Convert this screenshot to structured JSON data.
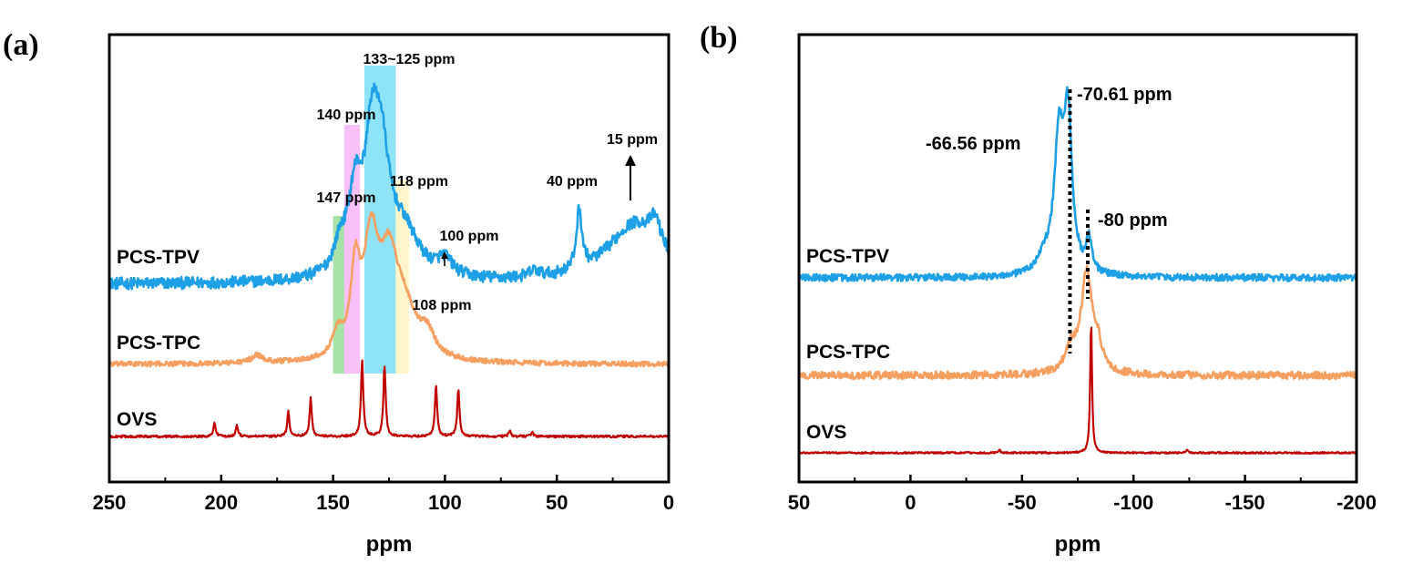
{
  "chart_data": [
    {
      "panel": "(a)",
      "type": "line",
      "xlabel": "ppm",
      "xlim": [
        250,
        0
      ],
      "x_reversed": true,
      "xticks": [
        250,
        200,
        150,
        100,
        50,
        0
      ],
      "series": [
        {
          "name": "PCS-TPV",
          "color": "#1ea0e6",
          "baseline": 0.0,
          "peaks": [
            [
              147,
              0.35,
              3
            ],
            [
              140,
              1.2,
              4
            ],
            [
              129,
              2.0,
              5
            ],
            [
              133,
              1.2,
              3
            ],
            [
              118,
              0.6,
              8
            ],
            [
              100,
              0.25,
              4
            ],
            [
              60,
              0.1,
              3
            ],
            [
              40,
              0.9,
              1.5
            ],
            [
              15,
              0.9,
              15
            ],
            [
              6,
              0.4,
              3
            ]
          ],
          "noise": 0.09
        },
        {
          "name": "PCS-TPC",
          "color": "#f5a060",
          "baseline": 0.0,
          "peaks": [
            [
              184,
              0.15,
              3
            ],
            [
              148,
              0.45,
              2.5
            ],
            [
              140,
              1.6,
              2.5
            ],
            [
              133,
              2.2,
              4
            ],
            [
              125,
              1.8,
              5
            ],
            [
              118,
              0.8,
              6
            ],
            [
              108,
              0.45,
              4
            ]
          ],
          "noise": 0.05
        },
        {
          "name": "OVS",
          "color": "#c00000",
          "baseline": 0.0,
          "peaks": [
            [
              203,
              0.25,
              0.6
            ],
            [
              193,
              0.2,
              0.6
            ],
            [
              170,
              0.45,
              0.6
            ],
            [
              160,
              0.7,
              0.6
            ],
            [
              137,
              1.4,
              0.6
            ],
            [
              127,
              1.3,
              0.6
            ],
            [
              104,
              0.95,
              0.6
            ],
            [
              94,
              0.85,
              0.6
            ],
            [
              71,
              0.1,
              0.6
            ],
            [
              61,
              0.08,
              0.6
            ]
          ],
          "noise": 0.02
        }
      ],
      "highlights": [
        {
          "from": 150,
          "to": 145,
          "color": "#5ecb5e"
        },
        {
          "from": 145,
          "to": 138,
          "color": "#f08cf0"
        },
        {
          "from": 136,
          "to": 122,
          "color": "#33ccee"
        },
        {
          "from": 122,
          "to": 116,
          "color": "#fff0a0"
        }
      ],
      "annotations": [
        {
          "text": "133~125 ppm",
          "x": 130,
          "y_series": "PCS-TPV",
          "dy": 2.55
        },
        {
          "text": "140 ppm",
          "x": 140,
          "y_series": "PCS-TPV",
          "dy": 1.9
        },
        {
          "text": "147 ppm",
          "x": 147,
          "y_series": "PCS-TPV",
          "dy": 0.85
        },
        {
          "text": "118 ppm",
          "x": 116,
          "y_series": "PCS-TPV",
          "dy": 1.1
        },
        {
          "text": "100 ppm",
          "x": 94,
          "y_series": "PCS-TPV",
          "dy": 0.45
        },
        {
          "text": "40 ppm",
          "x": 46,
          "y_series": "PCS-TPV",
          "dy": 1.1
        },
        {
          "text": "15 ppm",
          "x": 12,
          "y_series": "PCS-TPV",
          "dy": 1.65
        },
        {
          "text": "108 ppm",
          "x": 100,
          "y_series": "PCS-TPC",
          "dy": 0.7
        }
      ]
    },
    {
      "panel": "(b)",
      "type": "line",
      "xlabel": "ppm",
      "xlim": [
        50,
        -200
      ],
      "x_reversed": true,
      "xticks": [
        50,
        0,
        -50,
        -100,
        -150,
        -200
      ],
      "series": [
        {
          "name": "PCS-TPV",
          "color": "#1ea0e6",
          "baseline": 0.0,
          "peaks": [
            [
              -66.56,
              1.8,
              2.5
            ],
            [
              -70.61,
              2.1,
              2.2
            ],
            [
              -80,
              0.45,
              1.5
            ],
            [
              -60,
              0.2,
              4
            ]
          ],
          "noise": 0.05
        },
        {
          "name": "PCS-TPC",
          "color": "#f5a060",
          "baseline": 0.0,
          "peaks": [
            [
              -79,
              1.35,
              3
            ],
            [
              -72,
              0.3,
              3
            ],
            [
              -84,
              0.3,
              2
            ]
          ],
          "noise": 0.05
        },
        {
          "name": "OVS",
          "color": "#c00000",
          "baseline": 0.0,
          "peaks": [
            [
              -81,
              1.6,
              0.5
            ],
            [
              -40,
              0.03,
              0.5
            ],
            [
              -124,
              0.04,
              0.5
            ]
          ],
          "noise": 0.01
        }
      ],
      "annotations": [
        {
          "text": "-70.61 ppm",
          "x": -71.5
        },
        {
          "text": "-66.56 ppm",
          "x": -66.56
        },
        {
          "text": "-80 ppm",
          "x": -80
        }
      ]
    }
  ]
}
